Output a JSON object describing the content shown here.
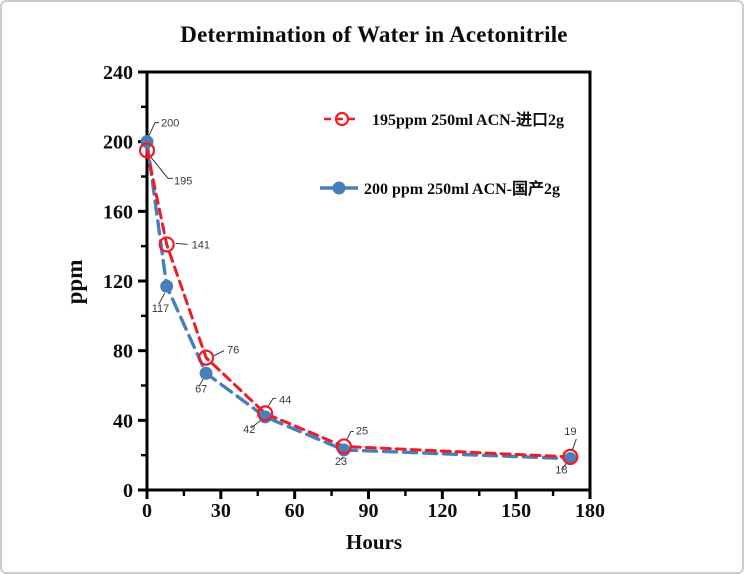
{
  "figure": {
    "background": "#ffffff",
    "border_color": "#cccccc",
    "axis_color": "#000000",
    "annotation_color": "#3a3a3a"
  },
  "chart_data": {
    "type": "line",
    "title": "Determination of Water in Acetonitrile",
    "xlabel": "Hours",
    "ylabel": "ppm",
    "xlim": [
      0,
      180
    ],
    "ylim": [
      0,
      240
    ],
    "x_major_tick_step": 30,
    "x_minor_tick_step": 15,
    "y_major_tick_step": 40,
    "y_minor_tick_step": 20,
    "x_tick_labels": [
      "0",
      "30",
      "60",
      "90",
      "120",
      "150",
      "180"
    ],
    "y_tick_labels": [
      "0",
      "40",
      "80",
      "120",
      "160",
      "200",
      "240"
    ],
    "grid": false,
    "legend": {
      "position": "inside-top-center",
      "entries": [
        "195ppm  250ml ACN-进口2g",
        "200 ppm 250ml ACN-国产2g"
      ]
    },
    "series": [
      {
        "key": "imported",
        "name": "195ppm  250ml ACN-进口2g",
        "color": "#ee1c25",
        "line_style": "dashed",
        "dash": "9 6",
        "line_width": 3,
        "marker": "open-circle",
        "points": [
          {
            "x": 0,
            "y": 195,
            "label": "195",
            "label_offset": [
              27,
              34
            ],
            "leader": [
              [
                4,
                7
              ],
              [
                21,
                28
              ],
              [
                26,
                28
              ]
            ]
          },
          {
            "x": 8,
            "y": 141,
            "label": "141",
            "label_offset": [
              25,
              4
            ],
            "leader": [
              [
                9,
                -1
              ],
              [
                21,
                0
              ]
            ]
          },
          {
            "x": 24,
            "y": 76,
            "label": "76",
            "label_offset": [
              21,
              -4
            ],
            "leader": [
              [
                8,
                -2
              ],
              [
                18,
                -7
              ]
            ]
          },
          {
            "x": 48,
            "y": 44,
            "label": "44",
            "label_offset": [
              14,
              -10
            ],
            "leader": [
              [
                3,
                -7
              ],
              [
                8,
                -15
              ],
              [
                11,
                -15
              ]
            ]
          },
          {
            "x": 80,
            "y": 25,
            "label": "25",
            "label_offset": [
              12,
              -12
            ],
            "leader": [
              [
                3,
                -7
              ],
              [
                7,
                -15
              ],
              [
                10,
                -15
              ]
            ]
          },
          {
            "x": 172,
            "y": 19,
            "label": "19",
            "label_offset": [
              -6,
              -22
            ],
            "leader": [
              [
                2,
                -7
              ],
              [
                6,
                -18
              ]
            ]
          }
        ]
      },
      {
        "key": "domestic",
        "name": "200 ppm 250ml ACN-国产2g",
        "color": "#4a7ebb",
        "line_style": "dashed",
        "dash": "13 7",
        "line_width": 3.4,
        "marker": "filled-circle",
        "points": [
          {
            "x": 0,
            "y": 200,
            "label": "200",
            "label_offset": [
              14,
              -15
            ],
            "leader": [
              [
                2,
                -6
              ],
              [
                8,
                -19
              ],
              [
                12,
                -19
              ]
            ]
          },
          {
            "x": 8,
            "y": 117,
            "label": "117",
            "label_offset": [
              -15,
              26
            ],
            "leader": [
              [
                -2,
                7
              ],
              [
                -8,
                18
              ]
            ]
          },
          {
            "x": 24,
            "y": 67,
            "label": "67",
            "label_offset": [
              -11,
              19
            ],
            "leader": [
              [
                -3,
                6
              ],
              [
                -7,
                13
              ]
            ]
          },
          {
            "x": 48,
            "y": 42,
            "label": "42",
            "label_offset": [
              -22,
              16
            ],
            "leader": [
              [
                -5,
                4
              ],
              [
                -14,
                11
              ]
            ]
          },
          {
            "x": 80,
            "y": 23,
            "label": "23",
            "label_offset": [
              -9,
              15
            ],
            "leader": [
              [
                -1,
                7
              ],
              [
                -3,
                10
              ]
            ]
          },
          {
            "x": 172,
            "y": 18,
            "label": "18",
            "label_offset": [
              -15,
              15
            ],
            "leader": [
              [
                -4,
                5
              ],
              [
                -9,
                11
              ]
            ]
          }
        ]
      }
    ]
  }
}
